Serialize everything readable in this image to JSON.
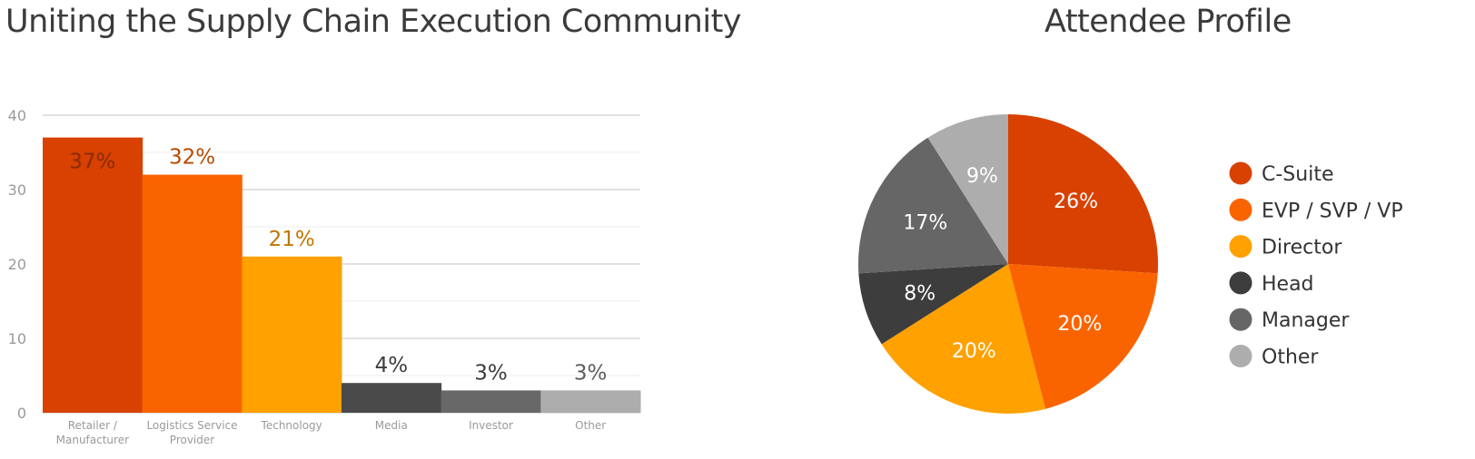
{
  "chart_data": [
    {
      "type": "bar",
      "title": "Uniting the Supply Chain Execution Community",
      "categories": [
        [
          "Retailer /",
          "Manufacturer"
        ],
        [
          "Logistics Service",
          "Provider"
        ],
        [
          "Technology"
        ],
        [
          "Media"
        ],
        [
          "Investor"
        ],
        [
          "Other"
        ]
      ],
      "values": [
        37,
        32,
        21,
        4,
        3,
        3
      ],
      "data_labels": [
        "37%",
        "32%",
        "21%",
        "4%",
        "3%",
        "3%"
      ],
      "colors": [
        "#d84100",
        "#fa6400",
        "#ffa100",
        "#4a4a4a",
        "#686868",
        "#adadad"
      ],
      "label_colors": [
        "#8a2a00",
        "#b84a00",
        "#c07600",
        "#3d3d3d",
        "#3d3d3d",
        "#5c5c5c"
      ],
      "ylim": [
        0,
        40
      ],
      "yticks": [
        0,
        10,
        20,
        30,
        40
      ],
      "grid": true
    },
    {
      "type": "pie",
      "title": "Attendee Profile",
      "categories": [
        "C-Suite",
        "EVP / SVP / VP",
        "Director",
        "Head",
        "Manager",
        "Other"
      ],
      "values": [
        26,
        20,
        20,
        8,
        17,
        9
      ],
      "data_labels": [
        "26%",
        "20%",
        "20%",
        "8%",
        "17%",
        "9%"
      ],
      "colors": [
        "#d84100",
        "#fa6400",
        "#ffa100",
        "#3d3d3d",
        "#666666",
        "#adadad"
      ],
      "legend_position": "right"
    }
  ]
}
